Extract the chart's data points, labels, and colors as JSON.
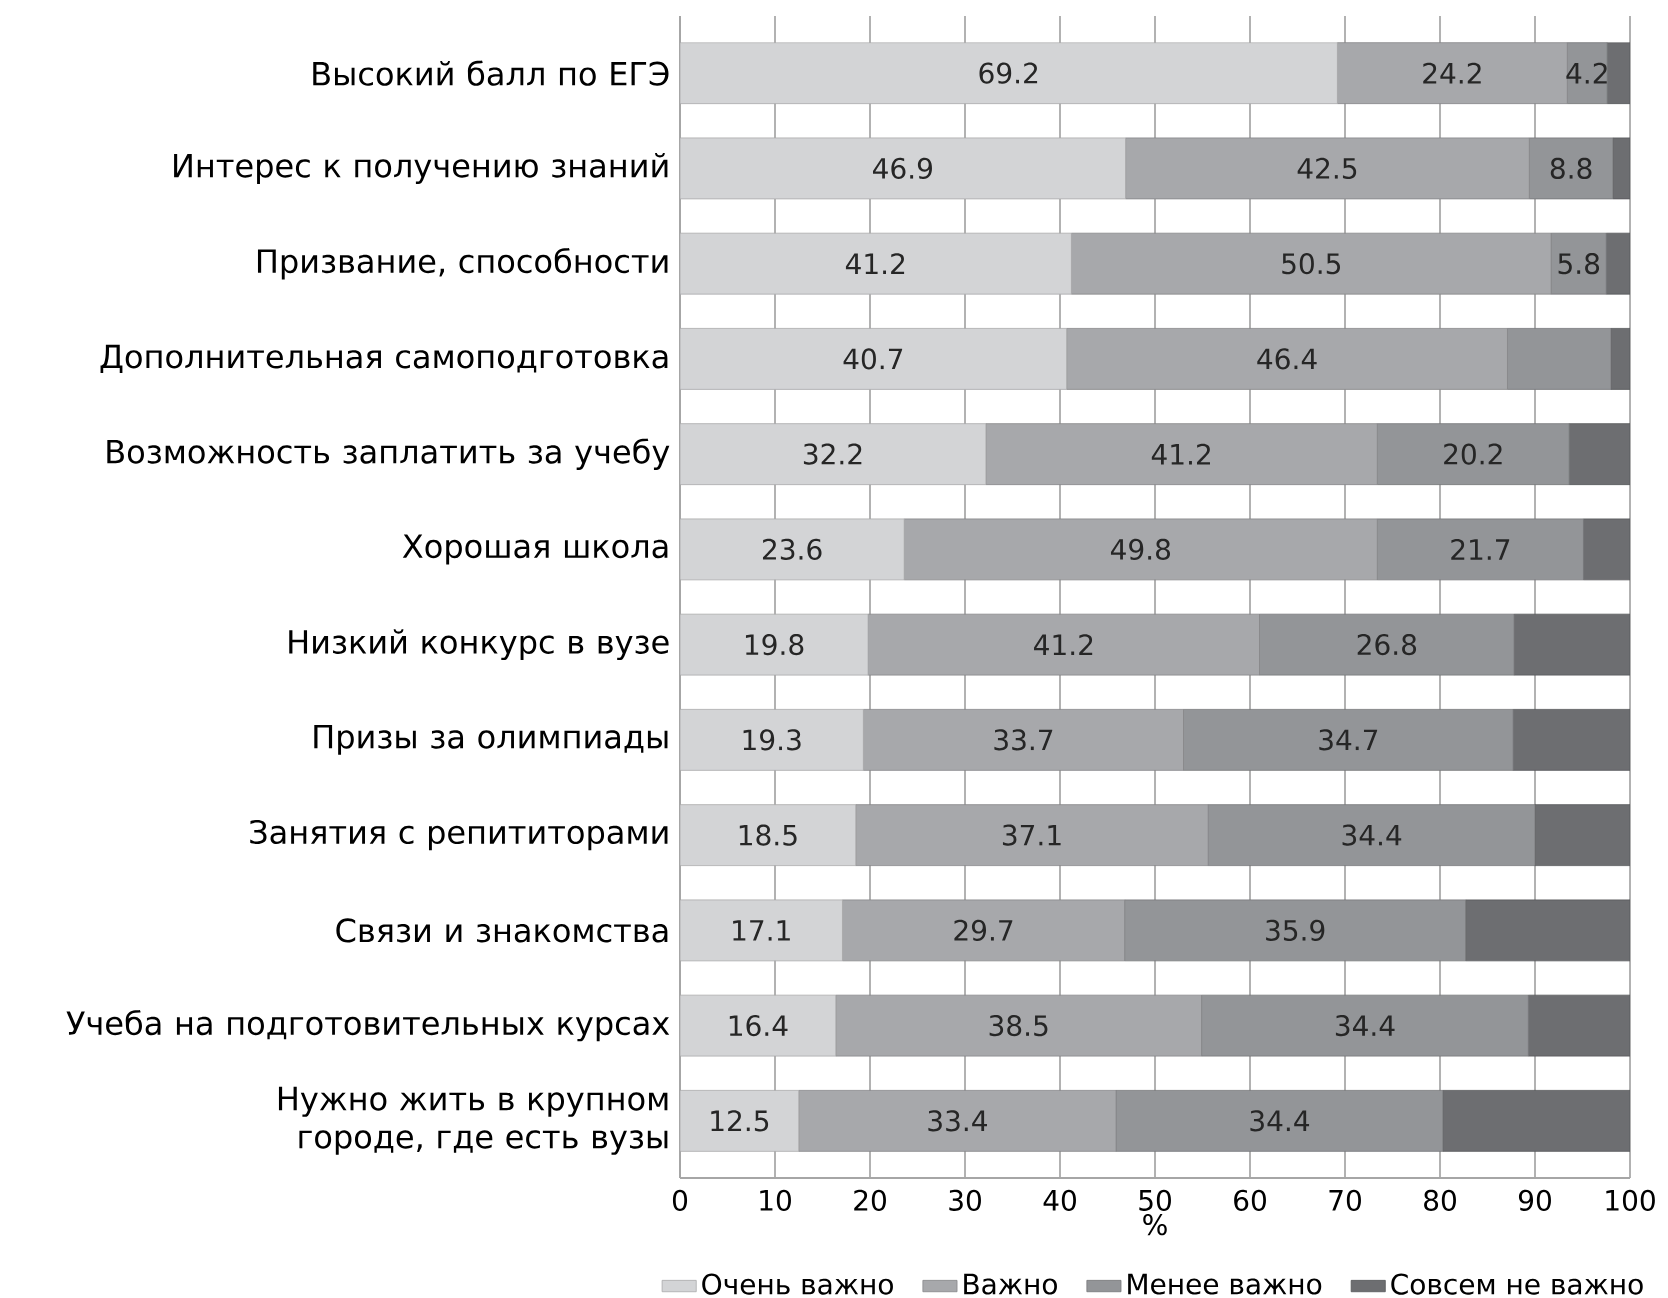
{
  "chart_data": {
    "type": "bar",
    "orientation": "horizontal",
    "stacked": true,
    "categories": [
      "Высокий балл по ЕГЭ",
      "Интерес к получению знаний",
      "Призвание, способности",
      "Дополнительная самоподготовка",
      "Возможность заплатить за учебу",
      "Хорошая школа",
      "Низкий конкурс в вузе",
      "Призы за олимпиады",
      "Занятия с репититорами",
      "Связи и знакомства",
      "Учеба на подготовительных курсах",
      "Нужно жить в крупном городе, где есть вузы"
    ],
    "series": [
      {
        "name": "Очень важно",
        "color": "#d3d4d6",
        "values": [
          69.2,
          46.9,
          41.2,
          40.7,
          32.2,
          23.6,
          19.8,
          19.3,
          18.5,
          17.1,
          16.4,
          12.5
        ],
        "value_labels": [
          "69.2",
          "46.9",
          "41.2",
          "40.7",
          "32.2",
          "23.6",
          "19.8",
          "19.3",
          "18.5",
          "17.1",
          "16.4",
          "12.5"
        ]
      },
      {
        "name": "Важно",
        "color": "#a7a8ab",
        "values": [
          24.2,
          42.5,
          50.5,
          46.4,
          41.2,
          49.8,
          41.2,
          33.7,
          37.1,
          29.7,
          38.5,
          33.4
        ],
        "value_labels": [
          "24.2",
          "42.5",
          "50.5",
          "46.4",
          "41.2",
          "49.8",
          "41.2",
          "33.7",
          "37.1",
          "29.7",
          "38.5",
          "33.4"
        ]
      },
      {
        "name": "Менее важно",
        "color": "#939598",
        "values": [
          4.2,
          8.8,
          5.8,
          10.9,
          20.2,
          21.7,
          26.8,
          34.7,
          34.4,
          35.9,
          34.4,
          34.4
        ],
        "value_labels": [
          "4.2",
          "8.8",
          "5.8",
          null,
          "20.2",
          "21.7",
          "26.8",
          "34.7",
          "34.4",
          "35.9",
          "34.4",
          "34.4"
        ]
      },
      {
        "name": "Совсем не важно",
        "color": "#6d6e71",
        "values": [
          2.4,
          1.8,
          2.5,
          2.0,
          6.4,
          4.9,
          12.2,
          12.3,
          10.0,
          17.3,
          10.7,
          19.7
        ]
      }
    ],
    "xlabel": "%",
    "xlim": [
      0,
      100
    ],
    "xticks": [
      0,
      10,
      20,
      30,
      40,
      50,
      60,
      70,
      80,
      90,
      100
    ],
    "grid": "x",
    "legend": "bottom"
  }
}
